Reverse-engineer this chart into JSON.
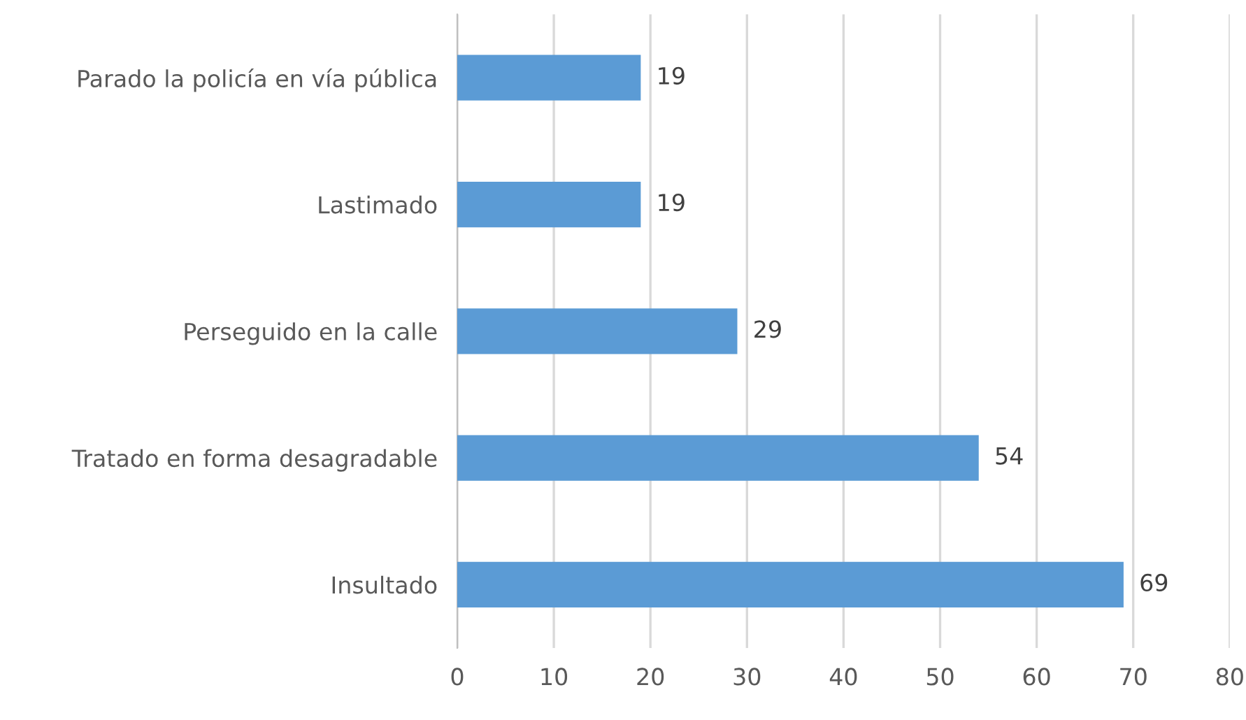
{
  "chart_data": {
    "type": "bar",
    "orientation": "horizontal",
    "categories": [
      "Parado la policía en vía pública",
      "Lastimado",
      "Perseguido en la calle",
      "Tratado en forma desagradable",
      "Insultado"
    ],
    "values": [
      19,
      19,
      29,
      54,
      69
    ],
    "color": "#5b9bd5",
    "xlim": [
      0,
      80
    ],
    "xticks": [
      0,
      10,
      20,
      30,
      40,
      50,
      60,
      70,
      80
    ],
    "grid": "x",
    "data_labels": true,
    "legend": false
  }
}
